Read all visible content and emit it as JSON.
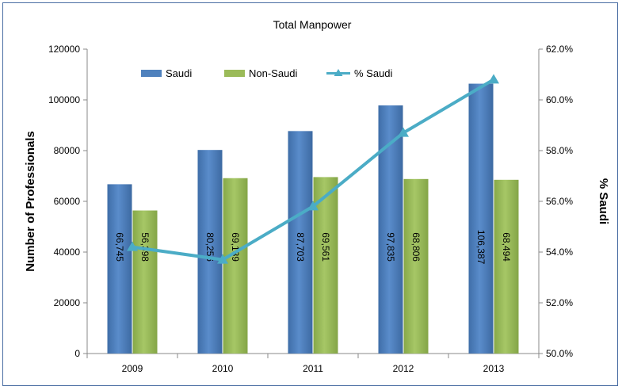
{
  "chart_data": {
    "type": "bar",
    "title": "Total Manpower",
    "categories": [
      "2009",
      "2010",
      "2011",
      "2012",
      "2013"
    ],
    "series": [
      {
        "name": "Saudi",
        "type": "bar",
        "axis": "left",
        "color": "#4f81bd",
        "values": [
          66745,
          80256,
          87703,
          97835,
          106387
        ],
        "labels": [
          "66,745",
          "80,256",
          "87,703",
          "97,835",
          "106,387"
        ]
      },
      {
        "name": "Non-Saudi",
        "type": "bar",
        "axis": "left",
        "color": "#9bbb59",
        "values": [
          56398,
          69139,
          69561,
          68806,
          68494
        ],
        "labels": [
          "56,398",
          "69,139",
          "69,561",
          "68,806",
          "68,494"
        ]
      },
      {
        "name": "% Saudi",
        "type": "line",
        "axis": "right",
        "color": "#4bacc6",
        "values": [
          54.2,
          53.7,
          55.8,
          58.7,
          60.8
        ]
      }
    ],
    "ylabel": "Number of Professionals",
    "ylim": [
      0,
      120000
    ],
    "yticks": [
      "0",
      "20000",
      "40000",
      "60000",
      "80000",
      "100000",
      "120000"
    ],
    "y2label": "% Saudi",
    "y2lim": [
      50,
      62
    ],
    "y2ticks": [
      "50.0%",
      "52.0%",
      "54.0%",
      "56.0%",
      "58.0%",
      "60.0%",
      "62.0%"
    ],
    "legend_position": "top-left",
    "grid": false
  }
}
